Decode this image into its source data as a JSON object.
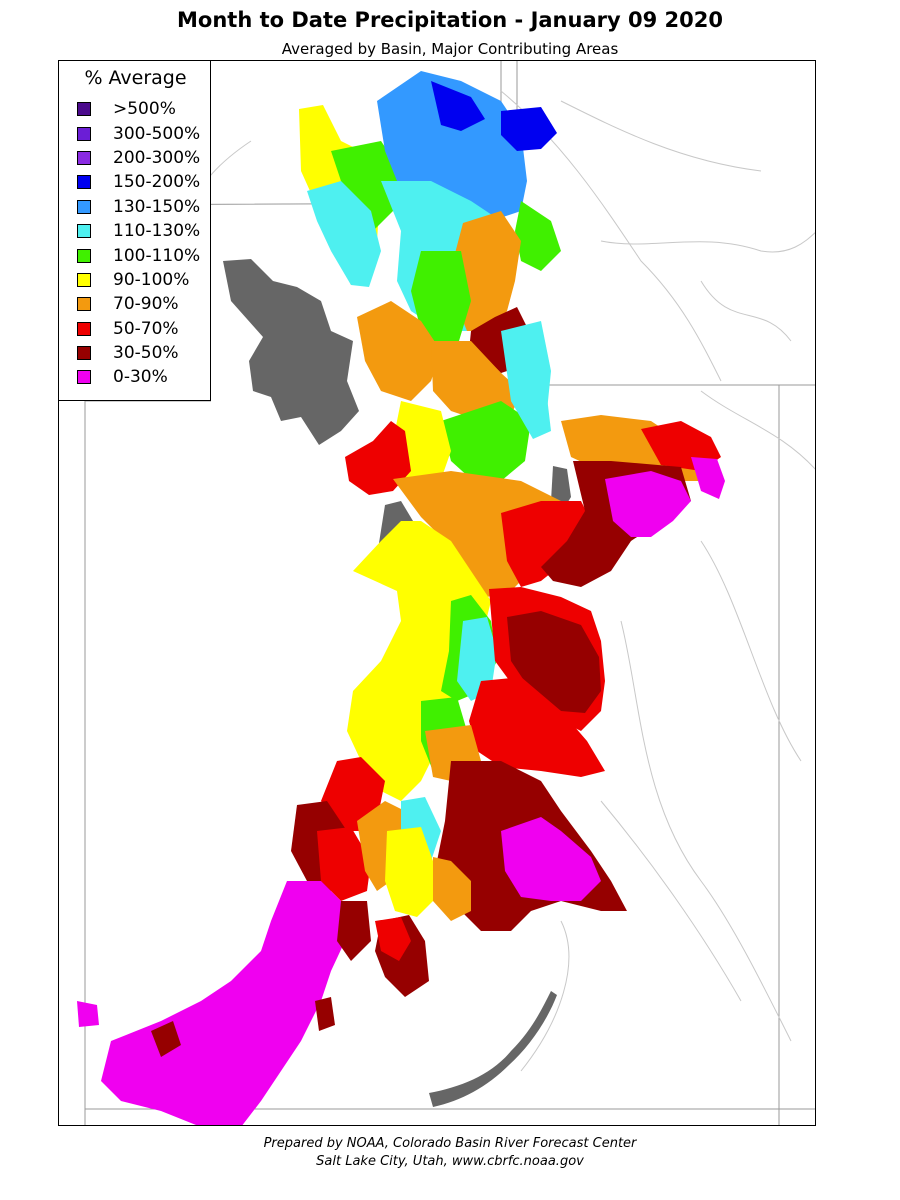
{
  "title": "Month to Date Precipitation - January 09 2020",
  "subtitle": "Averaged by Basin, Major Contributing Areas",
  "legend": {
    "title": "% Average",
    "items": [
      {
        "label": ">500%",
        "color": "#4b0a8c"
      },
      {
        "label": "300-500%",
        "color": "#6b1ed6"
      },
      {
        "label": "200-300%",
        "color": "#8a2be2"
      },
      {
        "label": "150-200%",
        "color": "#0000f0"
      },
      {
        "label": "130-150%",
        "color": "#3399ff"
      },
      {
        "label": "110-130%",
        "color": "#4ef0f0"
      },
      {
        "label": "100-110%",
        "color": "#40f000"
      },
      {
        "label": "90-100%",
        "color": "#ffff00"
      },
      {
        "label": "70-90%",
        "color": "#f39a0f"
      },
      {
        "label": "50-70%",
        "color": "#ee0000"
      },
      {
        "label": "30-50%",
        "color": "#960000"
      },
      {
        "label": "0-30%",
        "color": "#f000f0"
      }
    ]
  },
  "lake_color": "#666666",
  "footer": {
    "line1": "Prepared by NOAA, Colorado Basin River Forecast Center",
    "line2": "Salt Lake City, Utah, www.cbrfc.noaa.gov"
  }
}
